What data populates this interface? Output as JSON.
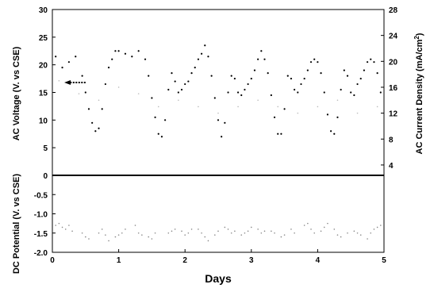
{
  "chart_data": [
    {
      "type": "scatter",
      "panel": "upper",
      "x": {
        "label": "Days",
        "range": [
          0,
          5
        ],
        "ticks": [
          "0",
          "1",
          "2",
          "3",
          "4",
          "5"
        ]
      },
      "y_left": {
        "label": "AC Voltage (V. vs CSE)",
        "range": [
          0,
          30
        ],
        "ticks": [
          "0",
          "5",
          "10",
          "15",
          "20",
          "25",
          "30"
        ]
      },
      "y_right": {
        "label": "AC Current Density (mA/cm",
        "label_sup": "2",
        "label_end": ")",
        "range": [
          2.4,
          28
        ],
        "ticks": [
          "4",
          "8",
          "12",
          "16",
          "20",
          "24",
          "28"
        ]
      },
      "series": [
        {
          "axis": "left",
          "style": "dotted",
          "color": "#000000",
          "x": [
            0.05,
            0.15,
            0.25,
            0.35,
            0.45,
            0.5,
            0.55,
            0.6,
            0.65,
            0.7,
            0.75,
            0.8,
            0.85,
            0.9,
            0.95,
            1.0,
            1.1,
            1.2,
            1.3,
            1.4,
            1.45,
            1.5,
            1.55,
            1.6,
            1.65,
            1.7,
            1.75,
            1.8,
            1.85,
            1.9,
            1.95,
            2.0,
            2.05,
            2.1,
            2.15,
            2.2,
            2.25,
            2.3,
            2.35,
            2.4,
            2.45,
            2.5,
            2.55,
            2.6,
            2.65,
            2.7,
            2.75,
            2.8,
            2.85,
            2.9,
            2.95,
            3.0,
            3.05,
            3.1,
            3.15,
            3.2,
            3.25,
            3.3,
            3.35,
            3.4,
            3.45,
            3.5,
            3.55,
            3.6,
            3.65,
            3.7,
            3.75,
            3.8,
            3.85,
            3.9,
            3.95,
            4.0,
            4.05,
            4.1,
            4.15,
            4.2,
            4.25,
            4.3,
            4.35,
            4.4,
            4.45,
            4.5,
            4.55,
            4.6,
            4.65,
            4.7,
            4.75,
            4.8,
            4.85,
            4.9,
            4.95
          ],
          "y": [
            21.5,
            19.5,
            20.5,
            21.5,
            18.0,
            15.0,
            12.0,
            9.5,
            8.0,
            8.5,
            12.0,
            16.5,
            19.5,
            21.0,
            22.5,
            22.5,
            22.0,
            21.5,
            22.5,
            21.0,
            18.0,
            14.0,
            10.5,
            7.5,
            7.0,
            10.0,
            15.5,
            18.5,
            17.0,
            15.0,
            15.5,
            16.5,
            17.0,
            18.5,
            19.5,
            21.0,
            22.0,
            23.5,
            21.5,
            18.0,
            14.0,
            10.0,
            7.0,
            9.5,
            15.0,
            18.0,
            17.5,
            15.0,
            14.5,
            15.5,
            16.5,
            17.5,
            19.0,
            21.0,
            22.5,
            21.0,
            18.5,
            14.5,
            10.5,
            7.5,
            7.5,
            12.0,
            18.0,
            17.5,
            15.5,
            15.0,
            16.5,
            17.5,
            19.0,
            20.5,
            21.0,
            20.5,
            18.5,
            15.0,
            11.0,
            8.0,
            7.5,
            10.5,
            15.5,
            19.0,
            18.0,
            15.0,
            14.5,
            16.5,
            17.5,
            19.0,
            20.5,
            21.0,
            20.5,
            18.5,
            15.0
          ]
        },
        {
          "axis": "right",
          "style": "faint-dotted",
          "color": "#bbbbbb",
          "x": [
            0.1,
            0.4,
            0.7,
            1.0,
            1.3,
            1.6,
            1.9,
            2.2,
            2.5,
            2.8,
            3.1,
            3.4,
            3.7,
            4.0,
            4.3,
            4.6,
            4.9
          ],
          "y": [
            17,
            15,
            14,
            16,
            15,
            13,
            14,
            13,
            12,
            13,
            14,
            13,
            12,
            13,
            14,
            12,
            13
          ]
        }
      ],
      "annotations": [
        {
          "type": "arrow",
          "direction": "left",
          "x_start": 0.5,
          "x_end": 0.18,
          "y": 16.8
        }
      ]
    },
    {
      "type": "scatter",
      "panel": "lower",
      "x": {
        "label": "Days",
        "range": [
          0,
          5
        ],
        "ticks": [
          "0",
          "1",
          "2",
          "3",
          "4",
          "5"
        ]
      },
      "y_left": {
        "label": "DC Potential (V. vs CSE)",
        "range": [
          -2.0,
          0
        ],
        "ticks": [
          "0",
          "-0.5",
          "-1.0",
          "-1.5",
          "-2.0"
        ]
      },
      "series": [
        {
          "style": "faint-dotted",
          "color": "#888888",
          "x": [
            0.05,
            0.1,
            0.15,
            0.2,
            0.25,
            0.3,
            0.45,
            0.5,
            0.55,
            0.7,
            0.75,
            0.8,
            0.85,
            0.95,
            1.0,
            1.05,
            1.1,
            1.25,
            1.3,
            1.35,
            1.45,
            1.5,
            1.55,
            1.75,
            1.8,
            1.85,
            1.95,
            2.0,
            2.05,
            2.1,
            2.2,
            2.25,
            2.3,
            2.35,
            2.45,
            2.5,
            2.6,
            2.65,
            2.7,
            2.75,
            2.85,
            2.9,
            2.95,
            3.0,
            3.1,
            3.15,
            3.2,
            3.3,
            3.35,
            3.45,
            3.5,
            3.6,
            3.65,
            3.8,
            3.85,
            3.9,
            3.95,
            4.05,
            4.1,
            4.15,
            4.25,
            4.3,
            4.35,
            4.45,
            4.55,
            4.6,
            4.65,
            4.75,
            4.8,
            4.85,
            4.9,
            4.95
          ],
          "y": [
            -1.3,
            -1.25,
            -1.35,
            -1.4,
            -1.3,
            -1.45,
            -1.5,
            -1.6,
            -1.65,
            -1.5,
            -1.4,
            -1.55,
            -1.7,
            -1.6,
            -1.55,
            -1.5,
            -1.4,
            -1.3,
            -1.5,
            -1.55,
            -1.6,
            -1.65,
            -1.5,
            -1.5,
            -1.45,
            -1.4,
            -1.45,
            -1.55,
            -1.5,
            -1.4,
            -1.4,
            -1.5,
            -1.6,
            -1.7,
            -1.55,
            -1.45,
            -1.35,
            -1.4,
            -1.5,
            -1.45,
            -1.55,
            -1.5,
            -1.45,
            -1.35,
            -1.4,
            -1.5,
            -1.45,
            -1.45,
            -1.5,
            -1.6,
            -1.55,
            -1.4,
            -1.5,
            -1.3,
            -1.25,
            -1.4,
            -1.5,
            -1.45,
            -1.35,
            -1.25,
            -1.4,
            -1.55,
            -1.6,
            -1.5,
            -1.45,
            -1.5,
            -1.55,
            -1.65,
            -1.5,
            -1.4,
            -1.35,
            -1.3
          ]
        }
      ]
    }
  ]
}
